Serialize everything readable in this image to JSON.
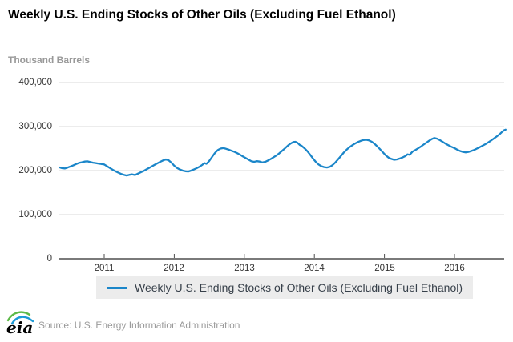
{
  "header": {
    "title": "Weekly U.S. Ending Stocks of Other Oils (Excluding Fuel Ethanol)",
    "units_label": "Thousand Barrels"
  },
  "legend": {
    "label": "Weekly U.S. Ending Stocks of Other Oils (Excluding Fuel Ethanol)"
  },
  "footer": {
    "logo_text": "eia",
    "source": "Source: U.S. Energy Information Administration"
  },
  "colors": {
    "line": "#1b86c9",
    "grid": "#d8d8d8",
    "axis": "#7a7a7a",
    "tick": "#4d4d4d",
    "legend_bg": "#ececec",
    "legend_text": "#37404a",
    "title_text": "#000000",
    "units_text": "#999999",
    "source_text": "#9a9a9a",
    "logo_green": "#5cb947",
    "logo_blue": "#1c9ad6"
  },
  "chart_data": {
    "type": "line",
    "title": "Weekly U.S. Ending Stocks of Other Oils (Excluding Fuel Ethanol)",
    "xlabel": "",
    "ylabel": "Thousand Barrels",
    "grid": "horizontal",
    "legend_position": "bottom",
    "xlim": [
      2010.35,
      2016.74
    ],
    "ylim": [
      0,
      400000
    ],
    "x_ticks": [
      "2011",
      "2012",
      "2013",
      "2014",
      "2015",
      "2016"
    ],
    "y_ticks": [
      "400,000",
      "300,000",
      "200,000",
      "100,000",
      "0"
    ],
    "y_tick_values": [
      400000,
      300000,
      200000,
      100000,
      0
    ],
    "series": [
      {
        "name": "Weekly U.S. Ending Stocks of Other Oils (Excluding Fuel Ethanol)",
        "color": "#1b86c9",
        "points": [
          [
            2010.37,
            207000
          ],
          [
            2010.4,
            205500
          ],
          [
            2010.44,
            205000
          ],
          [
            2010.48,
            207000
          ],
          [
            2010.52,
            209500
          ],
          [
            2010.56,
            212000
          ],
          [
            2010.6,
            215000
          ],
          [
            2010.64,
            217500
          ],
          [
            2010.68,
            219000
          ],
          [
            2010.72,
            220500
          ],
          [
            2010.76,
            221000
          ],
          [
            2010.8,
            219500
          ],
          [
            2010.84,
            218000
          ],
          [
            2010.88,
            217000
          ],
          [
            2010.92,
            216000
          ],
          [
            2010.96,
            215000
          ],
          [
            2011.0,
            214000
          ],
          [
            2011.04,
            210000
          ],
          [
            2011.08,
            206000
          ],
          [
            2011.12,
            202000
          ],
          [
            2011.16,
            198500
          ],
          [
            2011.2,
            195500
          ],
          [
            2011.24,
            192500
          ],
          [
            2011.28,
            190500
          ],
          [
            2011.32,
            189000
          ],
          [
            2011.36,
            190500
          ],
          [
            2011.4,
            191500
          ],
          [
            2011.44,
            190000
          ],
          [
            2011.48,
            193000
          ],
          [
            2011.52,
            196000
          ],
          [
            2011.56,
            199000
          ],
          [
            2011.6,
            202500
          ],
          [
            2011.64,
            206000
          ],
          [
            2011.68,
            209500
          ],
          [
            2011.72,
            213000
          ],
          [
            2011.76,
            216500
          ],
          [
            2011.8,
            220000
          ],
          [
            2011.84,
            223000
          ],
          [
            2011.88,
            225500
          ],
          [
            2011.92,
            223500
          ],
          [
            2011.96,
            218000
          ],
          [
            2012.0,
            211000
          ],
          [
            2012.04,
            206000
          ],
          [
            2012.08,
            202500
          ],
          [
            2012.12,
            200000
          ],
          [
            2012.16,
            198500
          ],
          [
            2012.2,
            198000
          ],
          [
            2012.24,
            200000
          ],
          [
            2012.28,
            202500
          ],
          [
            2012.32,
            205500
          ],
          [
            2012.36,
            209000
          ],
          [
            2012.4,
            213000
          ],
          [
            2012.43,
            217000
          ],
          [
            2012.46,
            215500
          ],
          [
            2012.5,
            222000
          ],
          [
            2012.54,
            231000
          ],
          [
            2012.58,
            240000
          ],
          [
            2012.62,
            246500
          ],
          [
            2012.66,
            250000
          ],
          [
            2012.7,
            251000
          ],
          [
            2012.74,
            249500
          ],
          [
            2012.78,
            247500
          ],
          [
            2012.82,
            245000
          ],
          [
            2012.86,
            242500
          ],
          [
            2012.9,
            239500
          ],
          [
            2012.94,
            236000
          ],
          [
            2012.98,
            232000
          ],
          [
            2013.02,
            228500
          ],
          [
            2013.06,
            225000
          ],
          [
            2013.1,
            221500
          ],
          [
            2013.14,
            220000
          ],
          [
            2013.18,
            221500
          ],
          [
            2013.22,
            220500
          ],
          [
            2013.26,
            218500
          ],
          [
            2013.3,
            220000
          ],
          [
            2013.34,
            223000
          ],
          [
            2013.38,
            226500
          ],
          [
            2013.42,
            230500
          ],
          [
            2013.46,
            234500
          ],
          [
            2013.5,
            239500
          ],
          [
            2013.54,
            245000
          ],
          [
            2013.58,
            250500
          ],
          [
            2013.62,
            256500
          ],
          [
            2013.66,
            261500
          ],
          [
            2013.7,
            265000
          ],
          [
            2013.73,
            265500
          ],
          [
            2013.76,
            263000
          ],
          [
            2013.79,
            258500
          ],
          [
            2013.82,
            256000
          ],
          [
            2013.86,
            250500
          ],
          [
            2013.9,
            244000
          ],
          [
            2013.94,
            236000
          ],
          [
            2013.98,
            227500
          ],
          [
            2014.02,
            220000
          ],
          [
            2014.06,
            214000
          ],
          [
            2014.1,
            210000
          ],
          [
            2014.14,
            208000
          ],
          [
            2014.18,
            207000
          ],
          [
            2014.22,
            208500
          ],
          [
            2014.26,
            212500
          ],
          [
            2014.3,
            218500
          ],
          [
            2014.34,
            226000
          ],
          [
            2014.38,
            233500
          ],
          [
            2014.42,
            241000
          ],
          [
            2014.46,
            247500
          ],
          [
            2014.5,
            253000
          ],
          [
            2014.54,
            257500
          ],
          [
            2014.58,
            261500
          ],
          [
            2014.62,
            265000
          ],
          [
            2014.66,
            267500
          ],
          [
            2014.7,
            269500
          ],
          [
            2014.74,
            270000
          ],
          [
            2014.78,
            268500
          ],
          [
            2014.82,
            265500
          ],
          [
            2014.86,
            260500
          ],
          [
            2014.9,
            254500
          ],
          [
            2014.94,
            248000
          ],
          [
            2014.98,
            241000
          ],
          [
            2015.02,
            234500
          ],
          [
            2015.06,
            229500
          ],
          [
            2015.1,
            226500
          ],
          [
            2015.14,
            224500
          ],
          [
            2015.18,
            225500
          ],
          [
            2015.22,
            227500
          ],
          [
            2015.26,
            230000
          ],
          [
            2015.3,
            233000
          ],
          [
            2015.33,
            237000
          ],
          [
            2015.36,
            236000
          ],
          [
            2015.4,
            243000
          ],
          [
            2015.44,
            246500
          ],
          [
            2015.48,
            250500
          ],
          [
            2015.52,
            254500
          ],
          [
            2015.56,
            259000
          ],
          [
            2015.6,
            263500
          ],
          [
            2015.64,
            268000
          ],
          [
            2015.68,
            272000
          ],
          [
            2015.71,
            274000
          ],
          [
            2015.75,
            272500
          ],
          [
            2015.79,
            269500
          ],
          [
            2015.83,
            265500
          ],
          [
            2015.87,
            261500
          ],
          [
            2015.91,
            258000
          ],
          [
            2015.95,
            254500
          ],
          [
            2016.0,
            251000
          ],
          [
            2016.04,
            247500
          ],
          [
            2016.08,
            244500
          ],
          [
            2016.12,
            242500
          ],
          [
            2016.16,
            241500
          ],
          [
            2016.2,
            242500
          ],
          [
            2016.24,
            244500
          ],
          [
            2016.28,
            247000
          ],
          [
            2016.32,
            250000
          ],
          [
            2016.36,
            253000
          ],
          [
            2016.4,
            256500
          ],
          [
            2016.44,
            260000
          ],
          [
            2016.48,
            264000
          ],
          [
            2016.52,
            268000
          ],
          [
            2016.56,
            272500
          ],
          [
            2016.6,
            277000
          ],
          [
            2016.64,
            282000
          ],
          [
            2016.68,
            288000
          ],
          [
            2016.71,
            292000
          ],
          [
            2016.73,
            293000
          ]
        ]
      }
    ]
  }
}
